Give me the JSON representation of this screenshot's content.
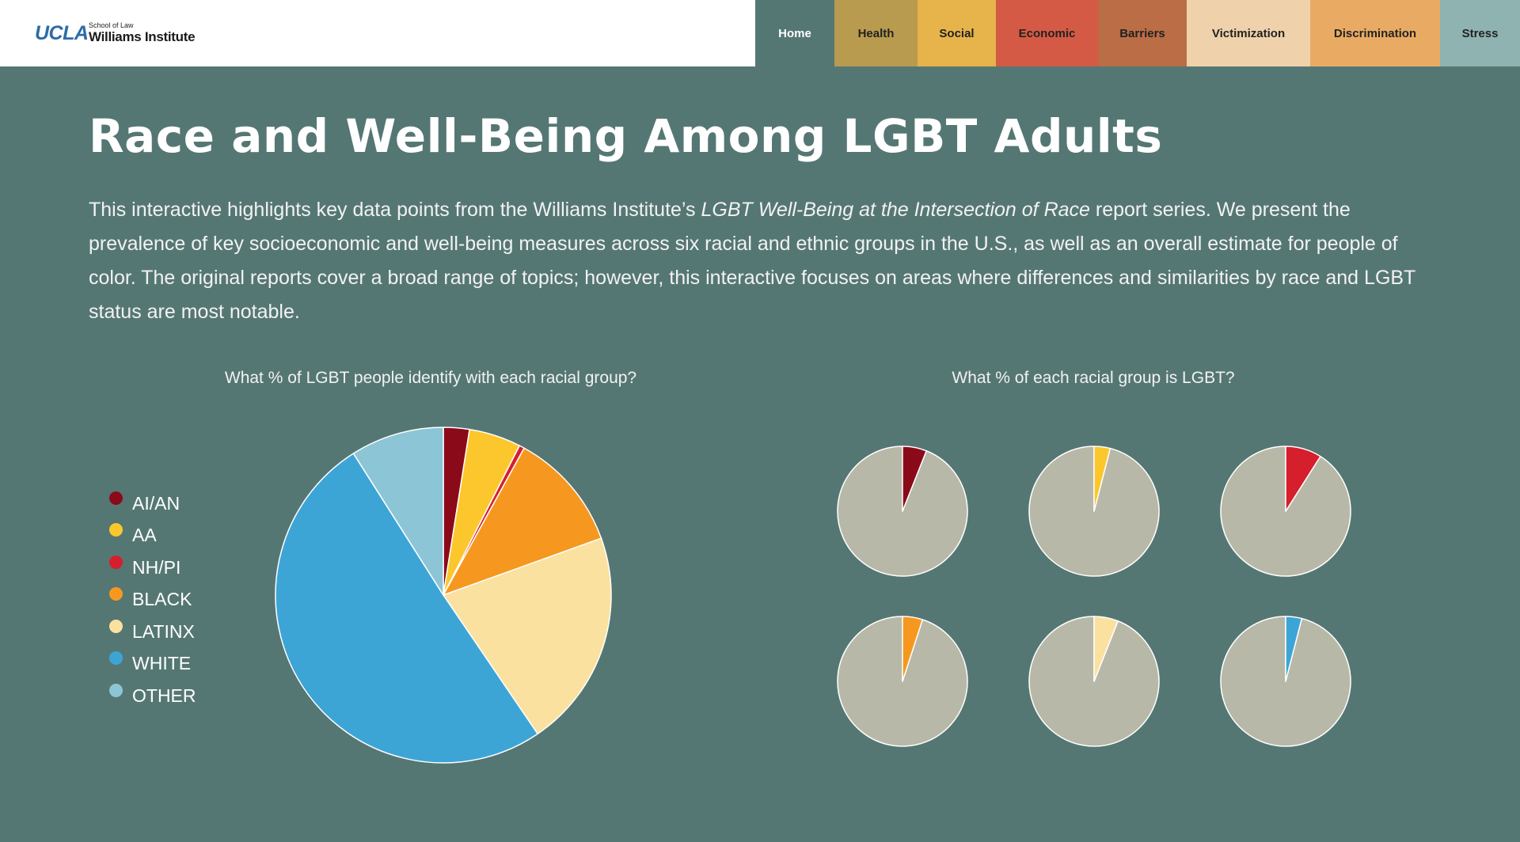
{
  "header": {
    "logo_ucla": "UCLA",
    "logo_school": "School of Law",
    "logo_name": "Williams Institute"
  },
  "nav": [
    {
      "label": "Home",
      "color": "#557774",
      "text_color": "#ffffff"
    },
    {
      "label": "Health",
      "color": "#b89b4e",
      "text_color": "#222222"
    },
    {
      "label": "Social",
      "color": "#e6b44a",
      "text_color": "#222222"
    },
    {
      "label": "Economic",
      "color": "#d45a45",
      "text_color": "#222222"
    },
    {
      "label": "Barriers",
      "color": "#bb6d45",
      "text_color": "#222222"
    },
    {
      "label": "Victimization",
      "color": "#efd2ab",
      "text_color": "#222222"
    },
    {
      "label": "Discrimination",
      "color": "#e9ab64",
      "text_color": "#222222"
    },
    {
      "label": "Stress",
      "color": "#8fb3b1",
      "text_color": "#222222"
    }
  ],
  "page": {
    "title": "Race and Well-Being Among LGBT Adults",
    "intro_before": "This interactive highlights key data points from the Williams Institute’s ",
    "intro_italic": "LGBT Well-Being at the Intersection of Race",
    "intro_after": " report series. We present the prevalence of key socioeconomic and well-being measures across six racial and ethnic groups in the U.S., as well as an overall estimate for people of color. The original reports cover a broad range of topics; however, this interactive focuses on areas where differences and similarities by race and LGBT status are most notable."
  },
  "colors": {
    "background": "#557774",
    "remainder": "#b8b8a8",
    "slice_stroke": "#ffffff"
  },
  "chart_data": [
    {
      "type": "pie",
      "title": "What % of LGBT people identify with each racial group?",
      "legend_placement": "left",
      "categories": [
        "AI/AN",
        "AA",
        "NH/PI",
        "BLACK",
        "LATINX",
        "WHITE",
        "OTHER"
      ],
      "colors": [
        "#8b0a1a",
        "#fcc72d",
        "#d61f2c",
        "#f6981f",
        "#fbe19f",
        "#3da5d6",
        "#8cc6d6"
      ],
      "values": [
        2.5,
        5,
        0.5,
        11.5,
        21,
        50.5,
        9
      ]
    },
    {
      "type": "pie",
      "title": "What % of each racial group is LGBT?",
      "categories": [
        "AI/AN",
        "AA",
        "NH/PI",
        "BLACK",
        "LATINX",
        "WHITE"
      ],
      "colors": [
        "#8b0a1a",
        "#fcc72d",
        "#d61f2c",
        "#f6981f",
        "#fbe19f",
        "#3da5d6"
      ],
      "values": [
        6,
        4,
        9,
        5,
        6,
        4
      ]
    }
  ]
}
